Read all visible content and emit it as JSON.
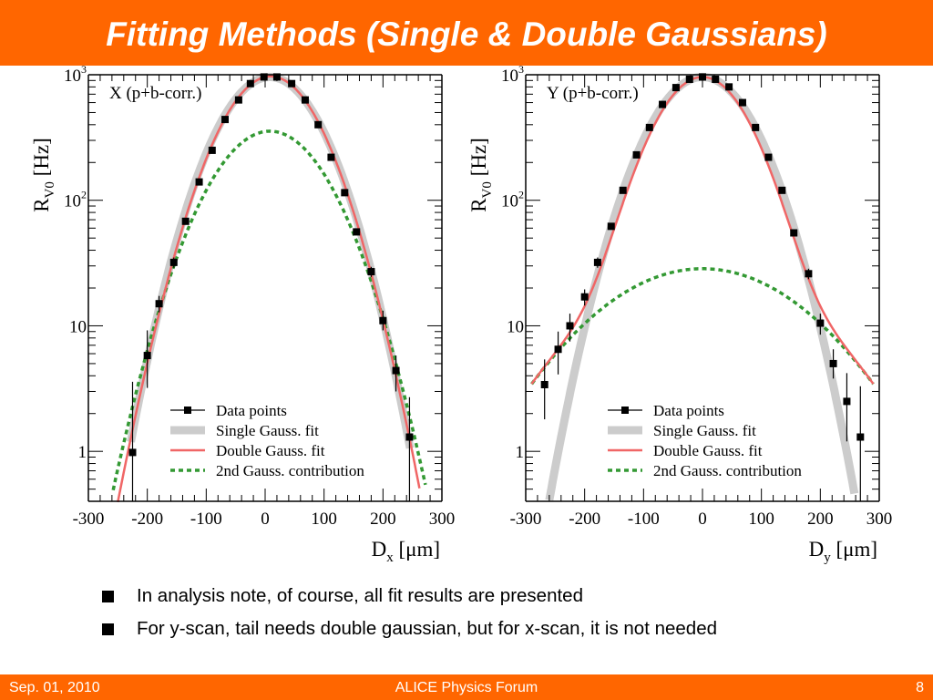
{
  "title": "Fitting Methods (Single & Double Gaussians)",
  "bullets": [
    "In analysis note, of course, all fit results are presented",
    "For y-scan, tail needs double gaussian, but for x-scan, it is not needed"
  ],
  "footer": {
    "date": "Sep. 01, 2010",
    "center": "ALICE Physics Forum",
    "page": "8"
  },
  "colors": {
    "title_bar": "#ff6600",
    "single_fit": "#cccccc",
    "double_fit": "#f06666",
    "second_gauss": "#339933",
    "data": "#000000"
  },
  "chart_data": [
    {
      "type": "scatter",
      "panel_label": "X (p+b-corr.)",
      "ylabel": {
        "main": "R",
        "sub": "V0",
        "unit": " [Hz]"
      },
      "xlabel": {
        "main": "D",
        "sub": "x",
        "unit": " [μm]"
      },
      "xlim": [
        -300,
        300
      ],
      "ylim": [
        0.4,
        1000
      ],
      "yscale": "log",
      "x_ticks": [
        "-300",
        "-200",
        "-100",
        "0",
        "100",
        "200",
        "300"
      ],
      "y_ticks": [
        {
          "value": 1,
          "base": "1",
          "exp": ""
        },
        {
          "value": 10,
          "base": "10",
          "exp": ""
        },
        {
          "value": 100,
          "base": "10",
          "exp": "2"
        },
        {
          "value": 1000,
          "base": "10",
          "exp": "3"
        }
      ],
      "legend": [
        "Data points",
        "Single Gauss. fit",
        "Double Gauss. fit",
        "2nd Gauss. contribution"
      ],
      "legend_position": "bottom-center",
      "series": [
        {
          "name": "Data points",
          "x": [
            -225,
            -200,
            -180,
            -155,
            -135,
            -112,
            -90,
            -68,
            -45,
            -25,
            -2,
            20,
            45,
            68,
            90,
            112,
            135,
            155,
            180,
            200,
            222,
            245
          ],
          "y": [
            0.98,
            5.8,
            15,
            32,
            68,
            140,
            250,
            440,
            630,
            850,
            960,
            960,
            850,
            630,
            400,
            220,
            115,
            56,
            27,
            11,
            4.4,
            1.3
          ],
          "err_lo": [
            0.98,
            2.6,
            2.2,
            3,
            0,
            0,
            0,
            0,
            0,
            0,
            0,
            0,
            0,
            0,
            0,
            0,
            0,
            0,
            2.5,
            1.8,
            1.4,
            1.3
          ],
          "err_hi": [
            2.6,
            3.4,
            2.3,
            3,
            0,
            0,
            0,
            0,
            0,
            0,
            0,
            0,
            0,
            0,
            0,
            0,
            0,
            0,
            2.5,
            2.2,
            1.4,
            1.4
          ]
        },
        {
          "name": "Single Gauss. fit",
          "amp": 960,
          "mean": 8,
          "sigma": 64.5,
          "x_range": [
            -228,
            246
          ]
        },
        {
          "name": "Double Gauss. fit",
          "gauss1": {
            "amp": 620,
            "mean": 10,
            "sigma": 59
          },
          "gauss2": {
            "amp": 350,
            "mean": 8,
            "sigma": 69.5
          },
          "x_range": [
            -250,
            262
          ]
        },
        {
          "name": "2nd Gauss. contribution",
          "amp": 355,
          "mean": 8,
          "sigma": 73.3,
          "x_range": [
            -258,
            272
          ]
        }
      ]
    },
    {
      "type": "scatter",
      "panel_label": "Y (p+b-corr.)",
      "ylabel": {
        "main": "R",
        "sub": "V0",
        "unit": " [Hz]"
      },
      "xlabel": {
        "main": "D",
        "sub": "y",
        "unit": " [μm]"
      },
      "xlim": [
        -300,
        300
      ],
      "ylim": [
        0.4,
        1000
      ],
      "yscale": "log",
      "x_ticks": [
        "-300",
        "-200",
        "-100",
        "0",
        "100",
        "200",
        "300"
      ],
      "y_ticks": [
        {
          "value": 1,
          "base": "1",
          "exp": ""
        },
        {
          "value": 10,
          "base": "10",
          "exp": ""
        },
        {
          "value": 100,
          "base": "10",
          "exp": "2"
        },
        {
          "value": 1000,
          "base": "10",
          "exp": "3"
        }
      ],
      "legend": [
        "Data points",
        "Single Gauss. fit",
        "Double Gauss. fit",
        "2nd Gauss. contribution"
      ],
      "legend_position": "bottom-center",
      "series": [
        {
          "name": "Data points",
          "x": [
            -268,
            -245,
            -225,
            -200,
            -178,
            -155,
            -135,
            -112,
            -90,
            -68,
            -45,
            -22,
            0,
            22,
            45,
            68,
            90,
            112,
            135,
            155,
            180,
            200,
            222,
            245,
            268
          ],
          "y": [
            3.4,
            6.5,
            10,
            17,
            32,
            62,
            120,
            230,
            380,
            580,
            790,
            920,
            960,
            920,
            800,
            600,
            380,
            220,
            120,
            55,
            26,
            10.5,
            5,
            2.5,
            1.3
          ],
          "err_lo": [
            1.6,
            2.4,
            2.5,
            2.5,
            3,
            0,
            0,
            0,
            0,
            0,
            0,
            0,
            0,
            0,
            0,
            0,
            0,
            0,
            0,
            0,
            2.5,
            2,
            1.2,
            1.3,
            1.1
          ],
          "err_hi": [
            2,
            2.5,
            2.5,
            2.5,
            3,
            0,
            0,
            0,
            0,
            0,
            0,
            0,
            0,
            0,
            0,
            0,
            0,
            0,
            0,
            0,
            2.5,
            2,
            1.5,
            1.7,
            2
          ]
        },
        {
          "name": "Single Gauss. fit",
          "amp": 960,
          "mean": 0,
          "sigma": 66,
          "x_range": [
            -260,
            258
          ]
        },
        {
          "name": "Double Gauss. fit",
          "gauss1": {
            "amp": 930,
            "mean": 0,
            "sigma": 60.5
          },
          "gauss2": {
            "amp": 28.5,
            "mean": 0,
            "sigma": 141
          },
          "x_range": [
            -290,
            290
          ]
        },
        {
          "name": "2nd Gauss. contribution",
          "amp": 28.5,
          "mean": 0,
          "sigma": 141,
          "x_range": [
            -290,
            290
          ]
        }
      ]
    }
  ]
}
